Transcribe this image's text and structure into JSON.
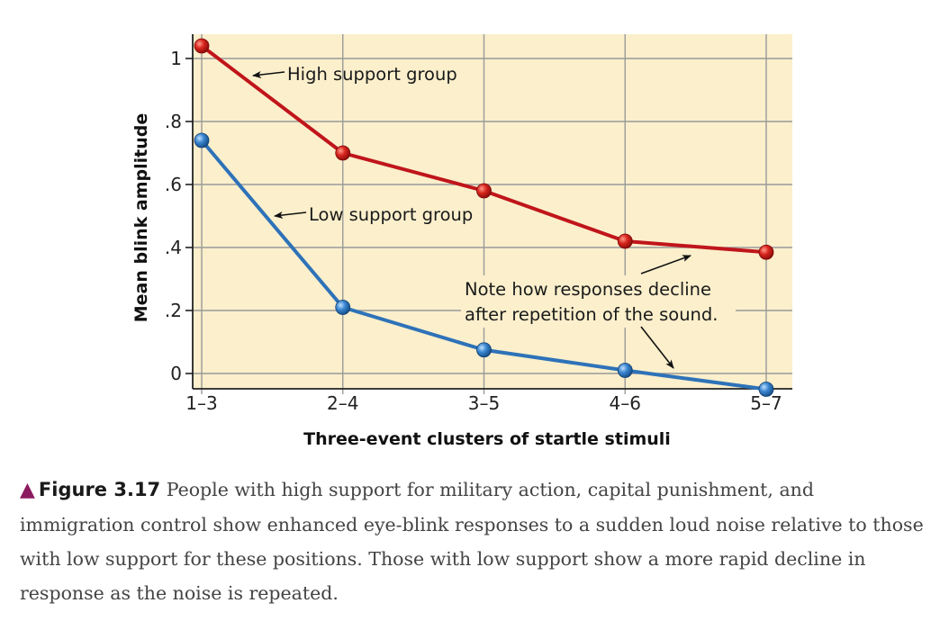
{
  "chart_data": {
    "type": "line",
    "categories": [
      "1–3",
      "2–4",
      "3–5",
      "4–6",
      "5–7"
    ],
    "series": [
      {
        "name": "High support group",
        "values": [
          1.04,
          0.7,
          0.58,
          0.42,
          0.385
        ],
        "color": "#c0151b"
      },
      {
        "name": "Low support group",
        "values": [
          0.74,
          0.21,
          0.075,
          0.01,
          -0.05
        ],
        "color": "#2e72b8"
      }
    ],
    "yticks": [
      "0",
      ".2",
      ".4",
      ".6",
      ".8",
      "1"
    ],
    "ylabel": "Mean blink amplitude",
    "xlabel": "Three-event clusters of startle stimuli",
    "ylim": [
      -0.05,
      1.05
    ],
    "grid": true,
    "background_color": "#fbefcc",
    "annotations": {
      "high_label": "High support group",
      "low_label": "Low support group",
      "note_line1": "Note how responses decline",
      "note_line2": "after repetition of the sound."
    }
  },
  "caption": {
    "figure_label": "Figure 3.17",
    "text": "People with high support for military action, capital punishment, and immigration control show enhanced eye-blink responses to a sudden loud noise relative to those with low support for these positions. Those with low support show a more rapid decline in response as the noise is repeated."
  }
}
